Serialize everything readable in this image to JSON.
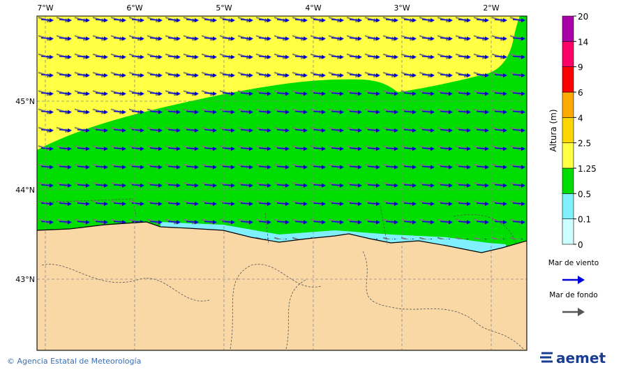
{
  "map": {
    "lon_labels": [
      "7°W",
      "6°W",
      "5°W",
      "4°W",
      "3°W",
      "2°W"
    ],
    "lat_labels": [
      "45°N",
      "44°N",
      "43°N"
    ],
    "colorbar": {
      "label": "Altura (m)",
      "ticks": [
        0,
        0.1,
        0.5,
        1.25,
        2.5,
        4,
        6,
        9,
        14,
        20
      ],
      "colors": [
        "#ccffff",
        "#80f0ff",
        "#00dd00",
        "#ffff44",
        "#ffd700",
        "#ffaa00",
        "#ff0000",
        "#ff0066",
        "#aa00aa"
      ]
    },
    "legend": [
      {
        "label": "Mar de viento",
        "color": "#0000dd"
      },
      {
        "label": "Mar de fondo",
        "color": "#555555"
      }
    ]
  },
  "footer": {
    "credit": "© Agencia Estatal de Meteorología",
    "logo": "aemet"
  }
}
